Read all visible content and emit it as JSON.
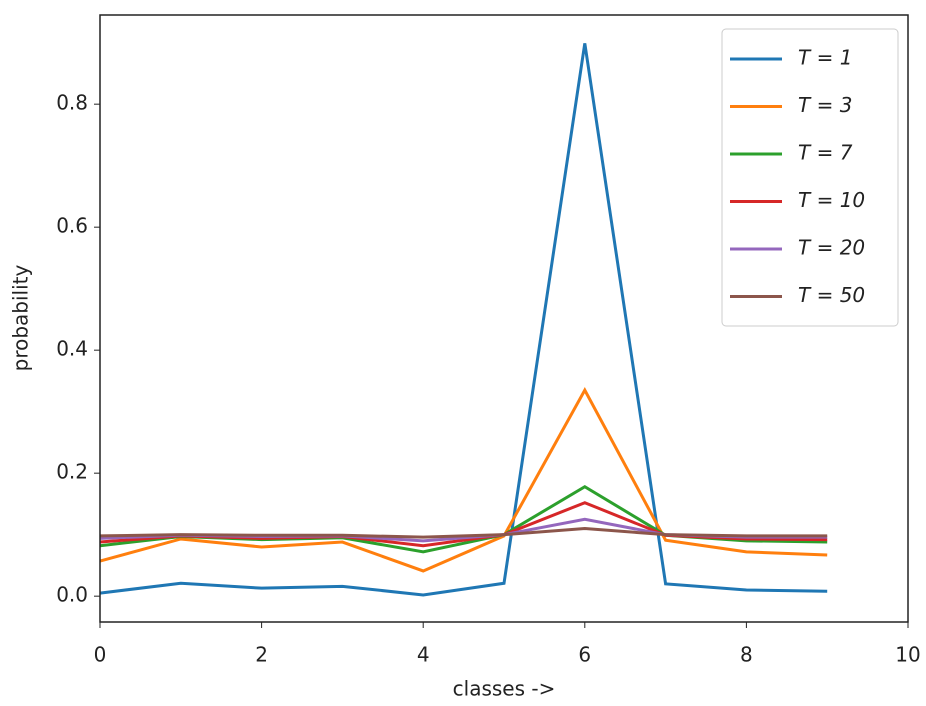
{
  "chart_data": {
    "type": "line",
    "xlabel": "classes ->",
    "ylabel": "probability",
    "x": [
      0,
      1,
      2,
      3,
      4,
      5,
      6,
      7,
      8,
      9
    ],
    "series": [
      {
        "name": "T = 1",
        "color": "#1f77b4",
        "values": [
          0.005,
          0.021,
          0.013,
          0.016,
          0.002,
          0.021,
          0.899,
          0.02,
          0.01,
          0.008
        ]
      },
      {
        "name": "T = 3",
        "color": "#ff7f0e",
        "values": [
          0.057,
          0.093,
          0.08,
          0.088,
          0.041,
          0.098,
          0.335,
          0.091,
          0.072,
          0.067
        ]
      },
      {
        "name": "T = 7",
        "color": "#2ca02c",
        "values": [
          0.082,
          0.097,
          0.092,
          0.095,
          0.072,
          0.1,
          0.178,
          0.099,
          0.09,
          0.088
        ]
      },
      {
        "name": "T = 10",
        "color": "#d62728",
        "values": [
          0.088,
          0.098,
          0.094,
          0.097,
          0.082,
          0.1,
          0.152,
          0.099,
          0.093,
          0.092
        ]
      },
      {
        "name": "T = 20",
        "color": "#9467bd",
        "values": [
          0.094,
          0.099,
          0.097,
          0.098,
          0.09,
          0.1,
          0.125,
          0.1,
          0.096,
          0.096
        ]
      },
      {
        "name": "T = 50",
        "color": "#8c564b",
        "values": [
          0.098,
          0.1,
          0.099,
          0.099,
          0.096,
          0.1,
          0.11,
          0.1,
          0.098,
          0.098
        ]
      }
    ],
    "xlim": [
      0,
      10
    ],
    "xticks": [
      0,
      2,
      4,
      6,
      8,
      10
    ],
    "ylim": [
      -0.042,
      0.945
    ],
    "yticks": [
      {
        "value": 0,
        "label": "0.0"
      },
      0.2,
      0.4,
      0.6,
      0.8
    ],
    "grid": false,
    "legend": "upper right"
  }
}
